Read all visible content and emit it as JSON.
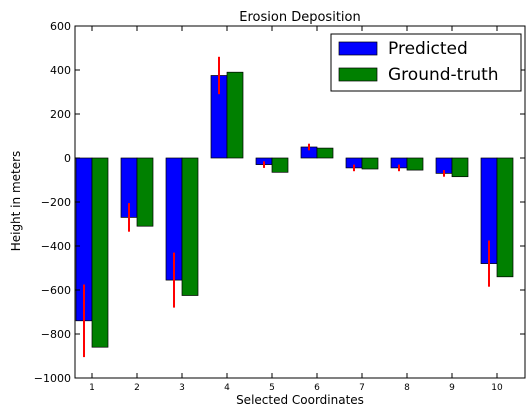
{
  "chart_data": {
    "type": "bar",
    "title": "Erosion Deposition",
    "xlabel": "Selected Coordinates",
    "ylabel": "Height in meters",
    "categories": [
      "1",
      "2",
      "3",
      "4",
      "5",
      "6",
      "7",
      "8",
      "9",
      "10"
    ],
    "ylim": [
      -1000,
      600
    ],
    "yticks": [
      600,
      400,
      200,
      0,
      -200,
      -400,
      -600,
      -800,
      -1000
    ],
    "ytick_labels": [
      "600",
      "400",
      "200",
      "0",
      "−200",
      "−400",
      "−600",
      "−800",
      "−1000"
    ],
    "grid": false,
    "legend_position": "top-right",
    "series": [
      {
        "name": "Predicted",
        "color": "#0000ff",
        "values": [
          -740,
          -270,
          -555,
          375,
          -30,
          50,
          -45,
          -45,
          -70,
          -480
        ],
        "error": [
          165,
          65,
          125,
          85,
          15,
          15,
          15,
          15,
          15,
          105
        ],
        "error_color": "#ff0000"
      },
      {
        "name": " Ground-truth",
        "color": "#008000",
        "values": [
          -860,
          -310,
          -625,
          390,
          -65,
          45,
          -50,
          -55,
          -85,
          -540
        ]
      }
    ]
  }
}
